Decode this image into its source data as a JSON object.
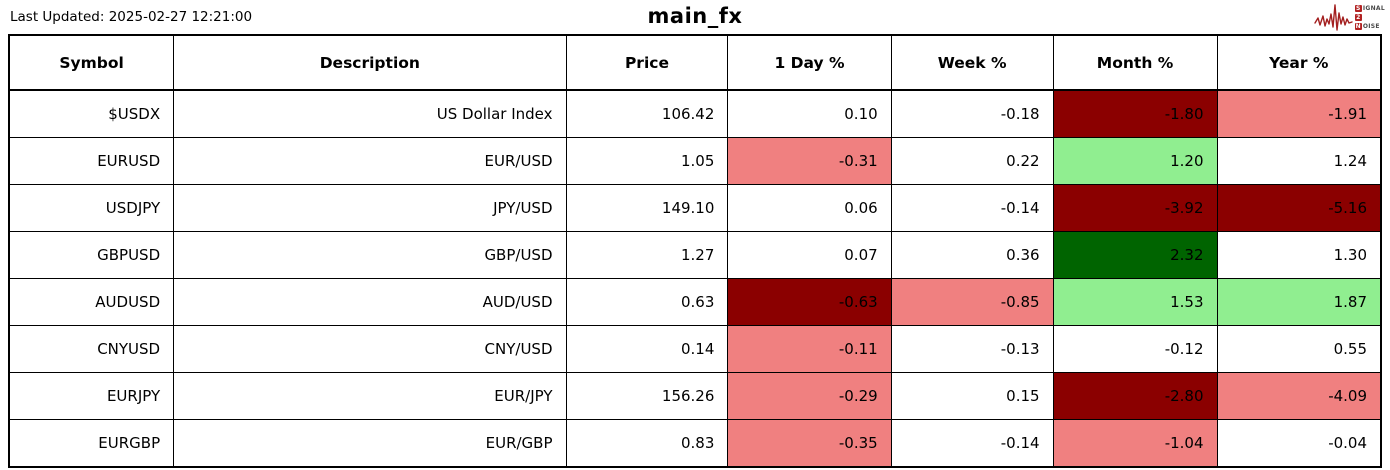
{
  "header": {
    "last_updated": "Last Updated: 2025-02-27 12:21:00"
  },
  "logo": {
    "brand_color": "#b22222",
    "word1_initial": "S",
    "word1_rest": "IGNAL",
    "word2": "2",
    "word3_initial": "N",
    "word3_rest": "OISE"
  },
  "colors": {
    "darkred": "#8b0000",
    "lightcoral": "#f08080",
    "lightgreen": "#90ee90",
    "darkgreen": "#006400"
  },
  "chart_data": {
    "type": "table",
    "title": "main_fx",
    "columns": [
      "Symbol",
      "Description",
      "Price",
      "1 Day %",
      "Week %",
      "Month %",
      "Year %"
    ],
    "rows": [
      {
        "cells": [
          {
            "v": "$USDX"
          },
          {
            "v": "US Dollar Index"
          },
          {
            "v": "106.42"
          },
          {
            "v": "0.10"
          },
          {
            "v": "-0.18"
          },
          {
            "v": "-1.80",
            "bg": "darkred"
          },
          {
            "v": "-1.91",
            "bg": "lightcoral"
          }
        ]
      },
      {
        "cells": [
          {
            "v": "EURUSD"
          },
          {
            "v": "EUR/USD"
          },
          {
            "v": "1.05"
          },
          {
            "v": "-0.31",
            "bg": "lightcoral"
          },
          {
            "v": "0.22"
          },
          {
            "v": "1.20",
            "bg": "lightgreen"
          },
          {
            "v": "1.24"
          }
        ]
      },
      {
        "cells": [
          {
            "v": "USDJPY"
          },
          {
            "v": "JPY/USD"
          },
          {
            "v": "149.10"
          },
          {
            "v": "0.06"
          },
          {
            "v": "-0.14"
          },
          {
            "v": "-3.92",
            "bg": "darkred"
          },
          {
            "v": "-5.16",
            "bg": "darkred"
          }
        ]
      },
      {
        "cells": [
          {
            "v": "GBPUSD"
          },
          {
            "v": "GBP/USD"
          },
          {
            "v": "1.27"
          },
          {
            "v": "0.07"
          },
          {
            "v": "0.36"
          },
          {
            "v": "2.32",
            "bg": "darkgreen"
          },
          {
            "v": "1.30"
          }
        ]
      },
      {
        "cells": [
          {
            "v": "AUDUSD"
          },
          {
            "v": "AUD/USD"
          },
          {
            "v": "0.63"
          },
          {
            "v": "-0.63",
            "bg": "darkred"
          },
          {
            "v": "-0.85",
            "bg": "lightcoral"
          },
          {
            "v": "1.53",
            "bg": "lightgreen"
          },
          {
            "v": "1.87",
            "bg": "lightgreen"
          }
        ]
      },
      {
        "cells": [
          {
            "v": "CNYUSD"
          },
          {
            "v": "CNY/USD"
          },
          {
            "v": "0.14"
          },
          {
            "v": "-0.11",
            "bg": "lightcoral"
          },
          {
            "v": "-0.13"
          },
          {
            "v": "-0.12"
          },
          {
            "v": "0.55"
          }
        ]
      },
      {
        "cells": [
          {
            "v": "EURJPY"
          },
          {
            "v": "EUR/JPY"
          },
          {
            "v": "156.26"
          },
          {
            "v": "-0.29",
            "bg": "lightcoral"
          },
          {
            "v": "0.15"
          },
          {
            "v": "-2.80",
            "bg": "darkred"
          },
          {
            "v": "-4.09",
            "bg": "lightcoral"
          }
        ]
      },
      {
        "cells": [
          {
            "v": "EURGBP"
          },
          {
            "v": "EUR/GBP"
          },
          {
            "v": "0.83"
          },
          {
            "v": "-0.35",
            "bg": "lightcoral"
          },
          {
            "v": "-0.14"
          },
          {
            "v": "-1.04",
            "bg": "lightcoral"
          },
          {
            "v": "-0.04"
          }
        ]
      }
    ]
  }
}
